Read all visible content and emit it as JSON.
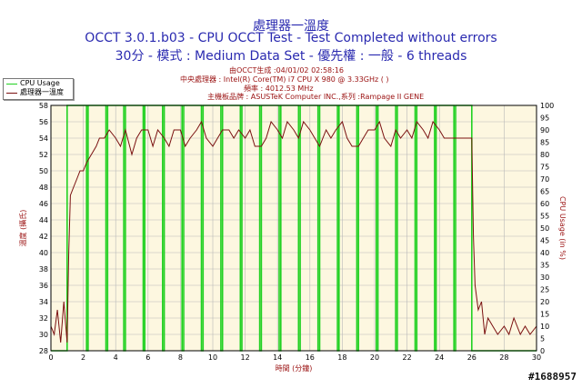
{
  "titles": {
    "line1": "處理器一溫度",
    "line2": "OCCT 3.0.1.b03 - CPU OCCT Test - Test Completed without errors",
    "line3": "30分 - 模式 : Medium Data Set - 優先權 : 一般 - 6 threads"
  },
  "info": {
    "generated": "由OCCT生成 :04/01/02 02:58:16",
    "cpu": "中央處理器 : Intel(R) Core(TM) i7 CPU X 980 @ 3.33GHz (  )",
    "freq": "頻率 : 4012.53 MHz",
    "board": "主機板品牌 : ASUSTeK Computer INC.,系列 :Rampage II GENE"
  },
  "watermark": "#1688957",
  "colors": {
    "plot_bg": "#fdf7e0",
    "temp_line": "#7a1010",
    "cpu_line": "#22d122",
    "grid": "#b8b8b8",
    "title": "#2a2ab0",
    "axis_label": "#9a1010"
  },
  "chart_data": {
    "type": "line",
    "title": "處理器一溫度",
    "xlabel": "時間 (分鐘)",
    "ylabel_left": "溫度 (攝氏)",
    "ylabel_right": "CPU Usage (in %)",
    "xlim": [
      0,
      30
    ],
    "ylim_left": [
      28,
      58
    ],
    "ylim_right": [
      0,
      100
    ],
    "x_ticks": [
      0,
      2,
      4,
      6,
      8,
      10,
      12,
      14,
      16,
      18,
      20,
      22,
      24,
      26,
      28,
      30
    ],
    "y_left_ticks": [
      28,
      30,
      32,
      34,
      36,
      38,
      40,
      42,
      44,
      46,
      48,
      50,
      52,
      54,
      56,
      58
    ],
    "y_right_ticks": [
      0,
      5,
      10,
      15,
      20,
      25,
      30,
      35,
      40,
      45,
      50,
      55,
      60,
      65,
      70,
      75,
      80,
      85,
      90,
      95,
      100
    ],
    "grid": true,
    "legend": "top-left",
    "series": [
      {
        "name": "CPU Usage",
        "axis": "right",
        "x": [
          0,
          1.0,
          1.0,
          2.2,
          2.2,
          2.3,
          2.3,
          3.4,
          3.4,
          3.5,
          3.5,
          4.5,
          4.5,
          4.6,
          4.6,
          5.7,
          5.7,
          5.8,
          5.8,
          6.9,
          6.9,
          7.0,
          7.0,
          8.1,
          8.1,
          8.2,
          8.2,
          9.3,
          9.3,
          9.4,
          9.4,
          10.5,
          10.5,
          10.6,
          10.6,
          11.7,
          11.7,
          11.8,
          11.8,
          12.9,
          12.9,
          13.0,
          13.0,
          14.1,
          14.1,
          14.2,
          14.2,
          15.3,
          15.3,
          15.4,
          15.4,
          16.5,
          16.5,
          16.6,
          16.6,
          17.7,
          17.7,
          17.8,
          17.8,
          18.9,
          18.9,
          19.0,
          19.0,
          20.1,
          20.1,
          20.2,
          20.2,
          21.3,
          21.3,
          21.4,
          21.4,
          22.5,
          22.5,
          22.6,
          22.6,
          23.7,
          23.7,
          23.8,
          23.8,
          24.9,
          24.9,
          25.0,
          25.0,
          26.0,
          26.0,
          30
        ],
        "values": [
          0,
          0,
          100,
          100,
          0,
          0,
          100,
          100,
          0,
          0,
          100,
          100,
          0,
          0,
          100,
          100,
          0,
          0,
          100,
          100,
          0,
          0,
          100,
          100,
          0,
          0,
          100,
          100,
          0,
          0,
          100,
          100,
          0,
          0,
          100,
          100,
          0,
          0,
          100,
          100,
          0,
          0,
          100,
          100,
          0,
          0,
          100,
          100,
          0,
          0,
          100,
          100,
          0,
          0,
          100,
          100,
          0,
          0,
          100,
          100,
          0,
          0,
          100,
          100,
          0,
          0,
          100,
          100,
          0,
          0,
          100,
          100,
          0,
          0,
          100,
          100,
          0,
          0,
          100,
          100,
          0,
          0,
          100,
          100,
          0,
          0
        ]
      },
      {
        "name": "處理器一溫度",
        "axis": "left",
        "x": [
          0,
          0.2,
          0.4,
          0.6,
          0.8,
          1.0,
          1.1,
          1.2,
          1.4,
          1.6,
          1.8,
          2.0,
          2.2,
          2.5,
          2.8,
          3.0,
          3.3,
          3.6,
          4.0,
          4.3,
          4.6,
          5.0,
          5.3,
          5.6,
          6.0,
          6.3,
          6.6,
          7.0,
          7.3,
          7.6,
          8.0,
          8.3,
          8.6,
          9.0,
          9.3,
          9.6,
          10.0,
          10.3,
          10.6,
          11.0,
          11.3,
          11.6,
          12.0,
          12.3,
          12.6,
          13.0,
          13.3,
          13.6,
          14.0,
          14.3,
          14.6,
          15.0,
          15.3,
          15.6,
          16.0,
          16.3,
          16.6,
          17.0,
          17.3,
          17.6,
          18.0,
          18.3,
          18.6,
          19.0,
          19.3,
          19.6,
          20.0,
          20.3,
          20.6,
          21.0,
          21.3,
          21.6,
          22.0,
          22.3,
          22.6,
          23.0,
          23.3,
          23.6,
          24.0,
          24.3,
          24.6,
          25.0,
          25.3,
          25.6,
          25.9,
          26.0,
          26.1,
          26.2,
          26.4,
          26.6,
          26.8,
          27.0,
          27.3,
          27.6,
          28.0,
          28.3,
          28.6,
          29.0,
          29.3,
          29.6,
          30.0
        ],
        "values": [
          31,
          30,
          33,
          29,
          34,
          29,
          40,
          47,
          48,
          49,
          50,
          50,
          51,
          52,
          53,
          54,
          54,
          55,
          54,
          53,
          55,
          52,
          54,
          55,
          55,
          53,
          55,
          54,
          53,
          55,
          55,
          53,
          54,
          55,
          56,
          54,
          53,
          54,
          55,
          55,
          54,
          55,
          54,
          55,
          53,
          53,
          54,
          56,
          55,
          54,
          56,
          55,
          54,
          56,
          55,
          54,
          53,
          55,
          54,
          55,
          56,
          54,
          53,
          53,
          54,
          55,
          55,
          56,
          54,
          53,
          55,
          54,
          55,
          54,
          56,
          55,
          54,
          56,
          55,
          54,
          54,
          54,
          54,
          54,
          54,
          54,
          42,
          36,
          33,
          34,
          30,
          32,
          31,
          30,
          31,
          30,
          32,
          30,
          31,
          30,
          31
        ]
      }
    ]
  }
}
